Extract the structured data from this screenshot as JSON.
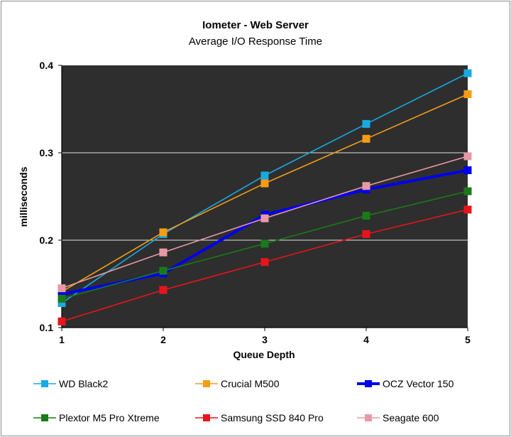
{
  "chart_data": {
    "type": "line",
    "title": "Iometer - Web Server",
    "subtitle": "Average I/O Response Time",
    "xlabel": "Queue Depth",
    "ylabel": "milliseconds",
    "x": [
      1,
      2,
      3,
      4,
      5
    ],
    "xlim": [
      1,
      5
    ],
    "ylim": [
      0.1,
      0.4
    ],
    "yticks": [
      "0.1",
      "0.2",
      "0.3",
      "0.4"
    ],
    "xticks": [
      "1",
      "2",
      "3",
      "4",
      "5"
    ],
    "plot_background": "#2e2e2e",
    "grid": true,
    "legend_position": "bottom",
    "series": [
      {
        "name": "WD Black2",
        "color": "#19a9e2",
        "values": [
          0.128,
          0.207,
          0.274,
          0.333,
          0.391
        ]
      },
      {
        "name": "Crucial M500",
        "color": "#f59c17",
        "values": [
          0.141,
          0.209,
          0.265,
          0.316,
          0.367
        ]
      },
      {
        "name": "OCZ Vector 150",
        "color": "#0000ee",
        "values": [
          0.138,
          0.162,
          0.229,
          0.258,
          0.28
        ]
      },
      {
        "name": "Plextor M5 Pro Xtreme",
        "color": "#1a7a1a",
        "values": [
          0.133,
          0.165,
          0.196,
          0.228,
          0.256
        ]
      },
      {
        "name": "Samsung SSD 840 Pro",
        "color": "#e8141b",
        "values": [
          0.107,
          0.143,
          0.175,
          0.207,
          0.235
        ]
      },
      {
        "name": "Seagate 600",
        "color": "#e89aa4",
        "values": [
          0.145,
          0.186,
          0.225,
          0.262,
          0.296
        ]
      }
    ]
  }
}
